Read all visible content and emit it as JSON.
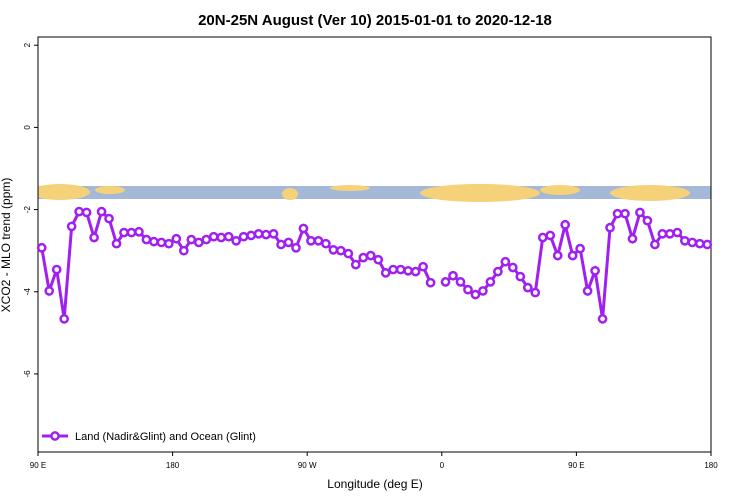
{
  "chart_data": {
    "type": "line",
    "title": "20N-25N August (Ver 10)   2015-01-01 to 2020-12-18",
    "x_label": "Longitude (deg E)",
    "y_label": "XCO2 - MLO trend (ppm)",
    "xlim": [
      90,
      540
    ],
    "xticks": [
      {
        "value": 90,
        "label": "90 E"
      },
      180,
      {
        "value": 270,
        "label": "90 W"
      },
      {
        "value": 360,
        "label": "0"
      },
      {
        "value": 450,
        "label": "90 E"
      },
      {
        "value": 540,
        "label": "180"
      }
    ],
    "ylim": [
      -7.9,
      2.2
    ],
    "yticks": [
      2,
      0,
      -2,
      -4,
      -6
    ],
    "legend": "bottom-left",
    "x": [
      92.5,
      97.5,
      102.5,
      107.5,
      112.5,
      117.5,
      122.5,
      127.5,
      132.5,
      137.5,
      142.5,
      147.5,
      152.5,
      157.5,
      162.5,
      167.5,
      172.5,
      177.5,
      182.5,
      187.5,
      192.5,
      197.5,
      202.5,
      207.5,
      212.5,
      217.5,
      222.5,
      227.5,
      232.5,
      237.5,
      242.5,
      247.5,
      252.5,
      257.5,
      262.5,
      267.5,
      272.5,
      277.5,
      282.5,
      287.5,
      292.5,
      297.5,
      302.5,
      307.5,
      312.5,
      317.5,
      322.5,
      327.5,
      332.5,
      337.5,
      342.5,
      347.5,
      352.5,
      357.5,
      362.5,
      367.5,
      372.5,
      377.5,
      382.5,
      387.5,
      392.5,
      397.5,
      402.5,
      407.5,
      412.5,
      417.5,
      422.5,
      427.5,
      432.5,
      437.5,
      442.5,
      447.5,
      452.5,
      457.5,
      462.5,
      467.5,
      472.5,
      477.5,
      482.5,
      487.5,
      492.5,
      497.5,
      502.5,
      507.5,
      512.5,
      517.5,
      522.5,
      527.5,
      532.5,
      537.5
    ],
    "series": [
      {
        "name": "Land (Nadir&Glint) and Ocean (Glint)",
        "color": "#a020f0",
        "values": [
          -2.93,
          -3.98,
          -3.46,
          -4.66,
          -2.41,
          -2.05,
          -2.07,
          -2.68,
          -2.05,
          -2.22,
          -2.83,
          -2.56,
          -2.56,
          -2.54,
          -2.73,
          -2.78,
          -2.8,
          -2.83,
          -2.71,
          -3.0,
          -2.73,
          -2.8,
          -2.73,
          -2.66,
          -2.68,
          -2.66,
          -2.76,
          -2.66,
          -2.63,
          -2.59,
          -2.61,
          -2.59,
          -2.85,
          -2.8,
          -2.93,
          -2.46,
          -2.76,
          -2.76,
          -2.83,
          -2.98,
          -3.0,
          -3.07,
          -3.34,
          -3.17,
          -3.12,
          -3.22,
          -3.54,
          -3.46,
          -3.46,
          -3.49,
          -3.51,
          -3.39,
          -3.78,
          null,
          -3.76,
          -3.61,
          -3.76,
          -3.95,
          -4.07,
          -3.98,
          -3.76,
          -3.51,
          -3.27,
          -3.41,
          -3.63,
          -3.9,
          -4.02,
          -2.68,
          -2.63,
          -3.12,
          -2.37,
          -3.12,
          -2.95,
          -3.98,
          -3.49,
          -4.66,
          -2.44,
          -2.1,
          -2.1,
          -2.71,
          -2.07,
          -2.27,
          -2.85,
          -2.59,
          -2.59,
          -2.56,
          -2.76,
          -2.8,
          -2.83,
          -2.85
        ]
      }
    ]
  }
}
